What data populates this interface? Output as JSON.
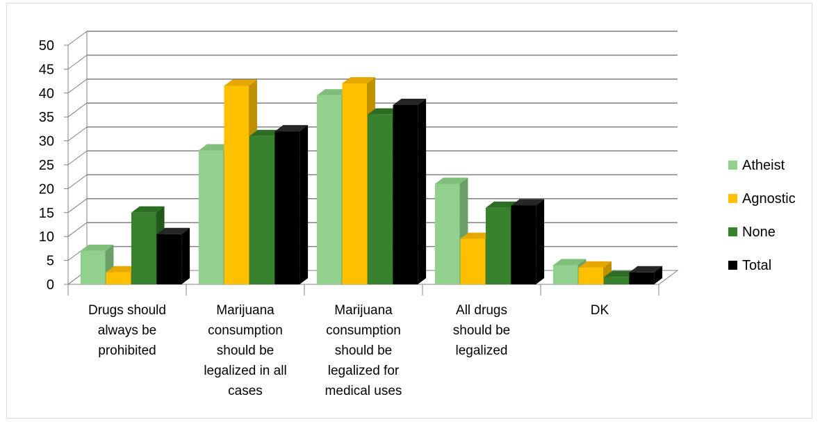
{
  "chart_data": {
    "type": "bar",
    "variant": "3d-clustered-column",
    "categories": [
      [
        "Drugs should",
        "always be",
        "prohibited"
      ],
      [
        "Marijuana",
        "consumption",
        "should be",
        "legalized in all",
        "cases"
      ],
      [
        "Marijuana",
        "consumption",
        "should be",
        "legalized for",
        "medical uses"
      ],
      [
        "All drugs",
        "should be",
        "legalized"
      ],
      [
        "DK"
      ]
    ],
    "series": [
      {
        "name": "Atheist",
        "values": [
          7,
          28,
          39.5,
          21,
          4
        ],
        "color": "#92d08e",
        "side": "#6b9f68",
        "top": "#7fbf7b"
      },
      {
        "name": "Agnostic",
        "values": [
          2.5,
          41.5,
          42,
          9.5,
          3.5
        ],
        "color": "#ffc000",
        "side": "#bf9000",
        "top": "#e6a800"
      },
      {
        "name": "None",
        "values": [
          15,
          31,
          35.5,
          16,
          1.5
        ],
        "color": "#38822e",
        "side": "#1f5a18",
        "top": "#2d6e24"
      },
      {
        "name": "Total",
        "values": [
          10.5,
          32,
          37.5,
          16.5,
          2.5
        ],
        "color": "#000000",
        "side": "#000000",
        "top": "#262626"
      }
    ],
    "ylim": [
      0,
      50
    ],
    "yticks": [
      "0",
      "5",
      "10",
      "15",
      "20",
      "25",
      "30",
      "35",
      "40",
      "45",
      "50"
    ],
    "grid": true,
    "legend_position": "right",
    "title": "",
    "xlabel": "",
    "ylabel": ""
  }
}
